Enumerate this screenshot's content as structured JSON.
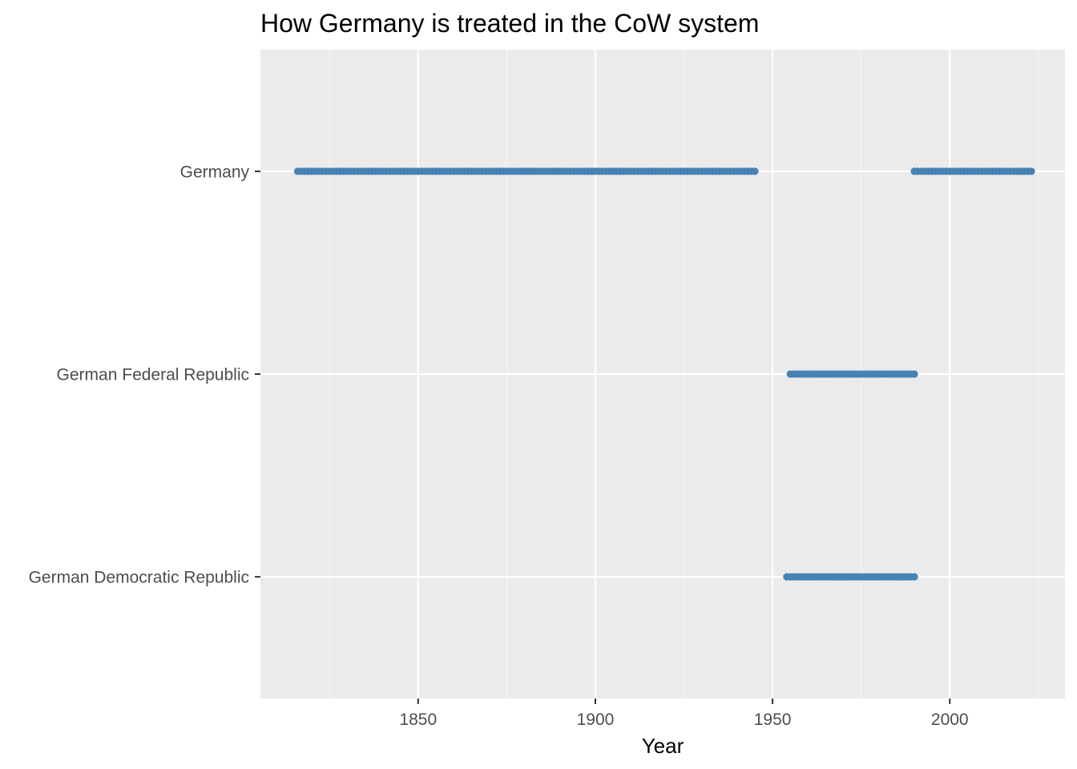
{
  "chart_data": {
    "type": "scatter",
    "title": "How Germany is treated in the CoW system",
    "xlabel": "Year",
    "ylabel": "",
    "xlim": [
      1805.5,
      2032.5
    ],
    "x_ticks": [
      1850,
      1900,
      1950,
      2000
    ],
    "x_minor_ticks": [
      1825,
      1875,
      1925,
      1975,
      2025
    ],
    "categories": [
      "Germany",
      "German Federal Republic",
      "German Democratic Republic"
    ],
    "series": [
      {
        "category": "Germany",
        "ranges": [
          [
            1816,
            1945
          ],
          [
            1990,
            2023
          ]
        ]
      },
      {
        "category": "German Federal Republic",
        "ranges": [
          [
            1955,
            1990
          ]
        ]
      },
      {
        "category": "German Democratic Republic",
        "ranges": [
          [
            1954,
            1990
          ]
        ]
      }
    ],
    "point_color": "#4682b4",
    "panel_background": "#ebebeb",
    "grid": true,
    "legend": "none"
  }
}
